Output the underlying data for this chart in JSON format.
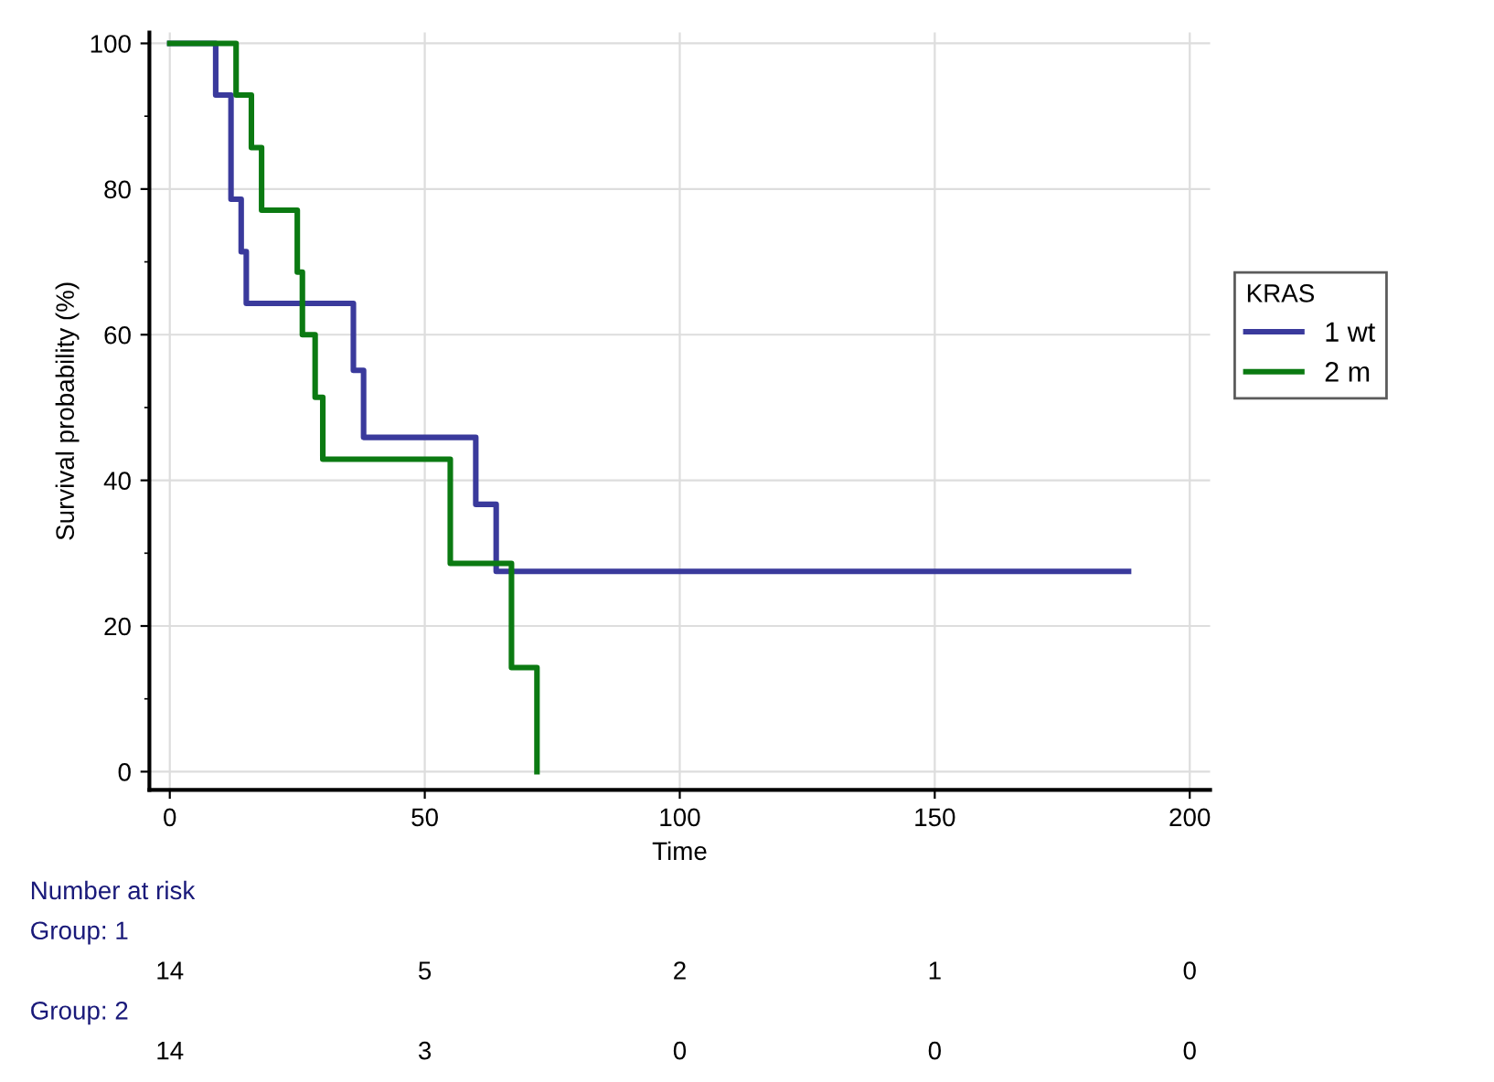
{
  "chart_data": {
    "type": "step",
    "xlabel": "Time",
    "ylabel": "Survival probability (%)",
    "legend_title": "KRAS",
    "legend": "right",
    "grid": true,
    "marker": "none",
    "line_style": "solid",
    "xlim": [
      -4,
      204
    ],
    "ylim": [
      -2.5,
      101.5
    ],
    "xticks": [
      0,
      50,
      100,
      150,
      200
    ],
    "yticks": [
      0,
      20,
      40,
      60,
      80,
      100
    ],
    "series": [
      {
        "name": "1 wt",
        "color": "#3a3a9c",
        "x": [
          0,
          9,
          12,
          14,
          15,
          36,
          38,
          60,
          64,
          188
        ],
        "values": [
          100,
          92.9,
          78.6,
          71.4,
          64.3,
          55.1,
          45.9,
          36.7,
          27.5,
          27.5
        ]
      },
      {
        "name": "2 m",
        "color": "#0b7a12",
        "x": [
          0,
          13,
          16,
          18,
          25,
          26,
          28.5,
          30,
          55,
          67,
          72
        ],
        "values": [
          100,
          92.9,
          85.7,
          77.1,
          68.6,
          60,
          51.4,
          42.9,
          28.6,
          14.3,
          0
        ]
      }
    ],
    "annotations": [
      "Number at risk",
      "Group: 1",
      "14",
      "5",
      "2",
      "1",
      "0",
      "Group: 2",
      "14",
      "3",
      "0",
      "0",
      "0"
    ]
  }
}
